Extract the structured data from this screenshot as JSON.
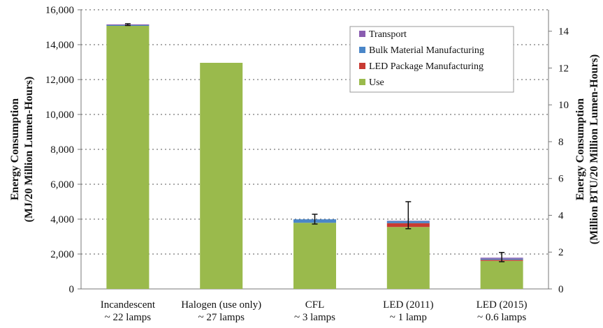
{
  "chart_data": {
    "type": "bar",
    "stacked": true,
    "categories": [
      [
        "Incandescent",
        "~ 22 lamps"
      ],
      [
        "Halogen (use only)",
        "~ 27 lamps"
      ],
      [
        "CFL",
        "~ 3 lamps"
      ],
      [
        "LED (2011)",
        "~ 1 lamp"
      ],
      [
        "LED (2015)",
        "~ 0.6 lamps"
      ]
    ],
    "series": [
      {
        "name": "Use",
        "color": "#9aba4c",
        "values": [
          15080,
          12960,
          3790,
          3550,
          1610
        ]
      },
      {
        "name": "LED Package Manufacturing",
        "color": "#c83a32",
        "values": [
          0,
          0,
          0,
          220,
          60
        ]
      },
      {
        "name": "Bulk Material Manufacturing",
        "color": "#4a86c8",
        "values": [
          40,
          0,
          200,
          120,
          60
        ]
      },
      {
        "name": "Transport",
        "color": "#8a5cb0",
        "values": [
          40,
          0,
          0,
          20,
          60
        ]
      }
    ],
    "error_bars": [
      [
        15100,
        15200
      ],
      null,
      [
        3720,
        4280
      ],
      [
        3450,
        5000
      ],
      [
        1560,
        2090
      ]
    ],
    "ylabel": "Energy Consumption\n(MJ/20 Million Lumen-Hours)",
    "ylabel_lines": [
      "Energy Consumption",
      "(MJ/20 Million Lumen-Hours)"
    ],
    "ylim": [
      0,
      16000
    ],
    "yticks": [
      0,
      2000,
      4000,
      6000,
      8000,
      10000,
      12000,
      14000,
      16000
    ],
    "ytick_labels": [
      "0",
      "2,000",
      "4,000",
      "6,000",
      "8,000",
      "10,000",
      "12,000",
      "14,000",
      "16,000"
    ],
    "y2label_lines": [
      "Energy Consumption",
      "(Million BTU/20 Million Lumen-Hours)"
    ],
    "y2ticks": [
      0,
      2,
      4,
      6,
      8,
      10,
      12,
      14
    ],
    "y2_mj_per_unit": 1055.06,
    "grid": true,
    "legend": "top-right",
    "legend_order": [
      "Transport",
      "Bulk Material Manufacturing",
      "LED Package Manufacturing",
      "Use"
    ]
  }
}
